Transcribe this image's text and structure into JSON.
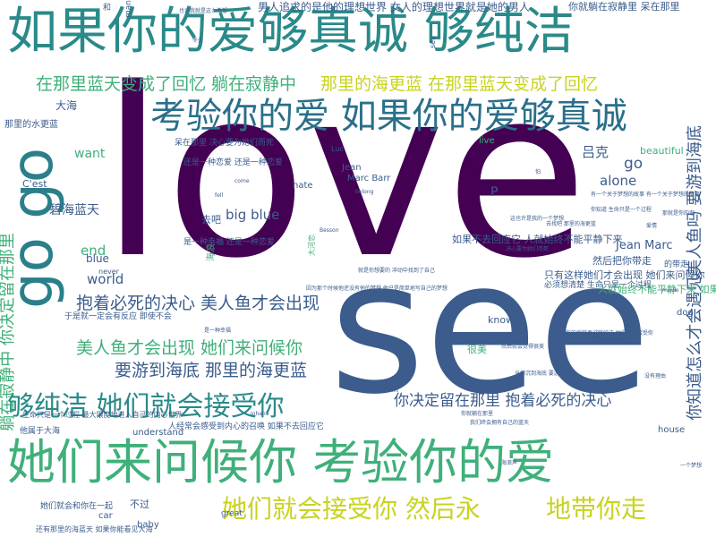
{
  "palette": {
    "dark_purple": "#440154",
    "steel_blue": "#3b5c8c",
    "teal": "#2a8a8a",
    "green": "#3fb07a",
    "lime": "#a8cf3a",
    "yellow": "#d9c81e"
  },
  "words": [
    {
      "text": "love",
      "color": "#440154"
    },
    {
      "text": "see",
      "color": "#3b5c8c"
    },
    {
      "text": "如果你的爱够真诚 够纯洁",
      "color": "#2a8a8a"
    },
    {
      "text": "她们来问候你 考验你的爱",
      "color": "#3fb07a"
    },
    {
      "text": "考验你的爱 如果你的爱够真诚",
      "color": "#2a6f8a"
    },
    {
      "text": "go go",
      "color": "#2a7f8a"
    },
    {
      "text": "够纯洁 她们就会接受你",
      "color": "#2a8a8a"
    },
    {
      "text": "她们就会接受你 然后永",
      "color": "#c8d320"
    },
    {
      "text": "地带你走",
      "color": "#c8d320"
    },
    {
      "text": "在那里蓝天变成了回忆 躺在寂静中",
      "color": "#3fb07a"
    },
    {
      "text": "那里的海更蓝 在那里蓝天变成了回忆",
      "color": "#c8d320"
    },
    {
      "text": "抱着必死的决心 美人鱼才会出现",
      "color": "#3b5c8c"
    },
    {
      "text": "美人鱼才会出现 她们来问候你",
      "color": "#3fb07a"
    },
    {
      "text": "要游到海底 那里的海更蓝",
      "color": "#3b5c8c"
    },
    {
      "text": "你决定留在那里 抱着必死的决心",
      "color": "#3b5c8c"
    },
    {
      "text": "躺在寂静中 你决定留在那里",
      "color": "#3fb07a"
    },
    {
      "text": "你知道怎么才会遇见美人鱼吗 要游到海底",
      "color": "#3b5c8c"
    },
    {
      "text": "男人追求的是他的理想世界 女人的理想世界就是她的男人",
      "color": "#3b5c8c"
    },
    {
      "text": "你就躺在寂静里 呆在那里",
      "color": "#3b5c8c"
    },
    {
      "text": "如果不去回应它 人就始终不能平静下来",
      "color": "#3b5c8c"
    },
    {
      "text": "然后把你带走",
      "color": "#3b5c8c"
    },
    {
      "text": "人就始终不能平静下来 如果去回应它",
      "color": "#3fb07a"
    },
    {
      "text": "只有这样她们才会出现 她们来问候你",
      "color": "#3b5c8c"
    },
    {
      "text": "碧海蓝天",
      "color": "#3b5c8c"
    },
    {
      "text": "big blue",
      "color": "#3b5c8c"
    },
    {
      "text": "alone",
      "color": "#3b5c8c"
    },
    {
      "text": "world",
      "color": "#3b5c8c"
    },
    {
      "text": "want",
      "color": "#3fb07a"
    },
    {
      "text": "go",
      "color": "#3b5c8c"
    },
    {
      "text": "吕克",
      "color": "#3b5c8c"
    },
    {
      "text": "大海",
      "color": "#3b5c8c"
    },
    {
      "text": "Jean Marc",
      "color": "#3b5c8c"
    },
    {
      "text": "beautiful",
      "color": "#3fb07a"
    },
    {
      "text": "understand",
      "color": "#3b5c8c"
    },
    {
      "text": "know",
      "color": "#3b5c8c"
    },
    {
      "text": "Obsession",
      "color": "#3b5c8c"
    },
    {
      "text": "house",
      "color": "#3b5c8c"
    },
    {
      "text": "dog",
      "color": "#3b5c8c"
    },
    {
      "text": "baby",
      "color": "#3b5c8c"
    },
    {
      "text": "car",
      "color": "#3b5c8c"
    },
    {
      "text": "great",
      "color": "#3b5c8c"
    },
    {
      "text": "hate",
      "color": "#3b5c8c"
    },
    {
      "text": "Jean",
      "color": "#3b5c8c"
    },
    {
      "text": "Marc Barr",
      "color": "#3b5c8c"
    },
    {
      "text": "end",
      "color": "#3fb07a"
    },
    {
      "text": "blue",
      "color": "#3b5c8c"
    },
    {
      "text": "C'est",
      "color": "#3b5c8c"
    },
    {
      "text": "live",
      "color": "#3fb07a"
    },
    {
      "text": "P",
      "color": "#3b5c8c"
    },
    {
      "text": "u",
      "color": "#3b5c8c"
    },
    {
      "text": "去吧",
      "color": "#3b5c8c"
    },
    {
      "text": "不过",
      "color": "#3b5c8c"
    },
    {
      "text": "很美",
      "color": "#3fb07a"
    },
    {
      "text": "她们就会和你在一起",
      "color": "#3b5c8c"
    },
    {
      "text": "那里的水更蓝",
      "color": "#3b5c8c"
    },
    {
      "text": "他属于大海",
      "color": "#3b5c8c"
    },
    {
      "text": "呆在那里 决心要为她们而死",
      "color": "#3b5c8c"
    },
    {
      "text": "还是一种恋爱 还是一种恋爱",
      "color": "#3b5c8c"
    },
    {
      "text": "是一种幸福 还是一种恋爱",
      "color": "#3b5c8c"
    },
    {
      "text": "因为那个时候他还没有他的梦想 他只是简单地写自己的梦想",
      "color": "#3b5c8c"
    },
    {
      "text": "人经常会感受到内心的召唤 如果不去回应它",
      "color": "#3b5c8c"
    },
    {
      "text": "生命只是一个过程 最大限度地进入自己的内心世界",
      "color": "#3b5c8c"
    },
    {
      "text": "还有那里的海蓝天 如果你能看见大海",
      "color": "#3b5c8c"
    },
    {
      "text": "海浪",
      "color": "#3fb07a"
    },
    {
      "text": "大河恋",
      "color": "#3fb07a"
    },
    {
      "text": "never",
      "color": "#3b5c8c"
    },
    {
      "text": "Luc",
      "color": "#3b5c8c"
    },
    {
      "text": "belong",
      "color": "#3b5c8c"
    },
    {
      "text": "sea",
      "color": "#3b5c8c"
    },
    {
      "text": "man",
      "color": "#3b5c8c"
    },
    {
      "text": "和",
      "color": "#3b5c8c"
    },
    {
      "text": "film",
      "color": "#3b5c8c"
    },
    {
      "text": "movie",
      "color": "#3b5c8c"
    },
    {
      "text": "的带走",
      "color": "#3b5c8c"
    },
    {
      "text": "于是就一定会有反应 即使不会",
      "color": "#3b5c8c"
    },
    {
      "text": "必须想清楚 生命只是一个过程",
      "color": "#3b5c8c"
    },
    {
      "text": "是一种幸福",
      "color": "#3b5c8c"
    },
    {
      "text": "有一个关于梦想的故事 有一个关于梦想的故事",
      "color": "#3b5c8c"
    },
    {
      "text": "你知道 生命只是一个过程",
      "color": "#3b5c8c"
    },
    {
      "text": "这也许是我的一个梦想",
      "color": "#3b5c8c"
    },
    {
      "text": "去找吧 那里的海更蓝",
      "color": "#3b5c8c"
    },
    {
      "text": "如果你的爱够真诚够纯洁 她们就会接受你",
      "color": "#3b5c8c"
    },
    {
      "text": "决心要为她们而死",
      "color": "#3b5c8c"
    },
    {
      "text": "然后就会觉得很美",
      "color": "#3b5c8c"
    },
    {
      "text": "当你沉到海底 要游到那里",
      "color": "#3b5c8c"
    },
    {
      "text": "你就躺在那里",
      "color": "#3b5c8c"
    },
    {
      "text": "我们终会拥有自己的蓝天",
      "color": "#3b5c8c"
    },
    {
      "text": "没有理由",
      "color": "#3b5c8c"
    },
    {
      "text": "一个梦想",
      "color": "#3b5c8c"
    },
    {
      "text": "海浪声",
      "color": "#3b5c8c"
    },
    {
      "text": "那就是你的家",
      "color": "#3b5c8c"
    },
    {
      "text": "也许我就是这么希望",
      "color": "#3b5c8c"
    },
    {
      "text": "冬天",
      "color": "#3b5c8c"
    },
    {
      "text": "爱情",
      "color": "#3b5c8c"
    },
    {
      "text": "怕",
      "color": "#3b5c8c"
    },
    {
      "text": "Johana",
      "color": "#3b5c8c"
    },
    {
      "text": "Besson",
      "color": "#3b5c8c"
    },
    {
      "text": "come",
      "color": "#3b5c8c"
    },
    {
      "text": "fell",
      "color": "#3b5c8c"
    },
    {
      "text": "就是你想要的 冲动中找到了自己",
      "color": "#3b5c8c"
    }
  ]
}
